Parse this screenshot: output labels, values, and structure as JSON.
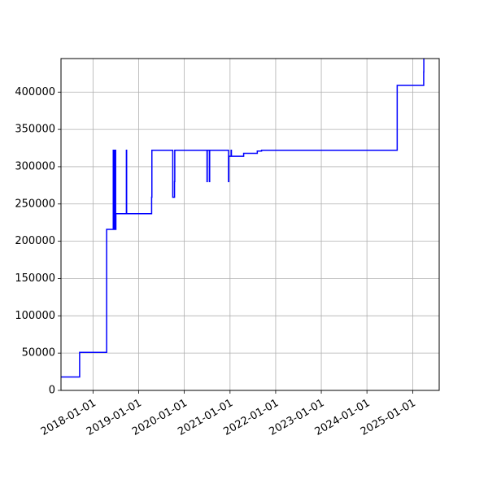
{
  "chart_data": {
    "type": "line",
    "title": "",
    "xlabel": "",
    "ylabel": "",
    "x_axis_type": "date",
    "xlim": [
      "2017-04-20",
      "2025-08-01"
    ],
    "ylim": [
      0,
      445000
    ],
    "grid": true,
    "step": true,
    "xticks": [
      "2018-01-01",
      "2019-01-01",
      "2020-01-01",
      "2021-01-01",
      "2022-01-01",
      "2023-01-01",
      "2024-01-01",
      "2025-01-01"
    ],
    "yticks": [
      0,
      50000,
      100000,
      150000,
      200000,
      250000,
      300000,
      350000,
      400000
    ],
    "series": [
      {
        "color": "#0000ff",
        "x": [
          "2017-04-20",
          "2017-09-15",
          "2017-09-16",
          "2018-04-10",
          "2018-04-20",
          "2018-06-10",
          "2018-06-12",
          "2018-06-15",
          "2018-06-17",
          "2018-06-20",
          "2018-06-22",
          "2018-06-25",
          "2018-06-27",
          "2018-07-01",
          "2018-07-03",
          "2018-07-10",
          "2018-09-25",
          "2018-09-27",
          "2019-03-20",
          "2019-04-15",
          "2019-04-17",
          "2019-10-01",
          "2019-10-15",
          "2019-10-17",
          "2020-07-01",
          "2020-07-03",
          "2020-07-20",
          "2020-07-22",
          "2020-12-20",
          "2020-12-22",
          "2021-01-10",
          "2021-01-12",
          "2021-04-10",
          "2021-04-20",
          "2021-08-05",
          "2021-08-07",
          "2021-09-10",
          "2023-07-01",
          "2024-08-30",
          "2025-03-30",
          "2025-03-31"
        ],
        "y": [
          18000,
          18000,
          51000,
          51000,
          216000,
          216000,
          322000,
          216000,
          322000,
          216000,
          322000,
          216000,
          322000,
          216000,
          237000,
          237000,
          322000,
          237000,
          237000,
          259000,
          322000,
          259000,
          280000,
          322000,
          280000,
          322000,
          280000,
          322000,
          280000,
          314000,
          322000,
          314000,
          314000,
          318000,
          318000,
          321000,
          322000,
          322000,
          409000,
          427000,
          445000
        ]
      }
    ]
  }
}
